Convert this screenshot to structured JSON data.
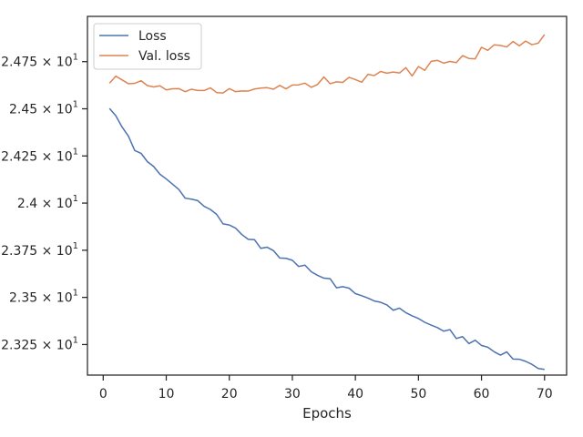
{
  "chart_data": {
    "type": "line",
    "xlabel": "Epochs",
    "ylabel": "",
    "title": "",
    "xlim": [
      -2.5,
      73.5
    ],
    "ylim": [
      23.088,
      24.99
    ],
    "grid": false,
    "legend": "top-left",
    "xticks": [
      0,
      10,
      20,
      30,
      40,
      50,
      60,
      70
    ],
    "xtick_labels": [
      "0",
      "10",
      "20",
      "30",
      "40",
      "50",
      "60",
      "70"
    ],
    "yticks": [
      23.25,
      23.5,
      23.75,
      24.0,
      24.25,
      24.5,
      24.75
    ],
    "ytick_labels": [
      {
        "mantissa": "2.325",
        "exponent": "1"
      },
      {
        "mantissa": "2.35",
        "exponent": "1"
      },
      {
        "mantissa": "2.375",
        "exponent": "1"
      },
      {
        "mantissa": "2.4",
        "exponent": "1"
      },
      {
        "mantissa": "2.425",
        "exponent": "1"
      },
      {
        "mantissa": "2.45",
        "exponent": "1"
      },
      {
        "mantissa": "2.475",
        "exponent": "1"
      }
    ],
    "x": [
      1,
      2,
      3,
      4,
      5,
      6,
      7,
      8,
      9,
      10,
      11,
      12,
      13,
      14,
      15,
      16,
      17,
      18,
      19,
      20,
      21,
      22,
      23,
      24,
      25,
      26,
      27,
      28,
      29,
      30,
      31,
      32,
      33,
      34,
      35,
      36,
      37,
      38,
      39,
      40,
      41,
      42,
      43,
      44,
      45,
      46,
      47,
      48,
      49,
      50,
      51,
      52,
      53,
      54,
      55,
      56,
      57,
      58,
      59,
      60,
      61,
      62,
      63,
      64,
      65,
      66,
      67,
      68,
      69,
      70
    ],
    "series": [
      {
        "name": "Loss",
        "color": "#4c72b0",
        "values": [
          24.502,
          24.463,
          24.403,
          24.355,
          24.279,
          24.264,
          24.22,
          24.194,
          24.153,
          24.128,
          24.1,
          24.072,
          24.026,
          24.021,
          24.013,
          23.983,
          23.966,
          23.94,
          23.89,
          23.884,
          23.867,
          23.833,
          23.808,
          23.806,
          23.76,
          23.766,
          23.748,
          23.709,
          23.707,
          23.697,
          23.664,
          23.671,
          23.636,
          23.617,
          23.602,
          23.599,
          23.551,
          23.557,
          23.549,
          23.52,
          23.509,
          23.496,
          23.481,
          23.474,
          23.46,
          23.432,
          23.443,
          23.419,
          23.402,
          23.388,
          23.368,
          23.353,
          23.34,
          23.321,
          23.329,
          23.282,
          23.292,
          23.255,
          23.273,
          23.245,
          23.236,
          23.212,
          23.194,
          23.211,
          23.173,
          23.172,
          23.161,
          23.145,
          23.123,
          23.118
        ]
      },
      {
        "name": "Val. loss",
        "color": "#dd8452",
        "values": [
          24.636,
          24.673,
          24.653,
          24.633,
          24.635,
          24.649,
          24.623,
          24.616,
          24.622,
          24.6,
          24.606,
          24.607,
          24.591,
          24.604,
          24.597,
          24.597,
          24.611,
          24.586,
          24.584,
          24.607,
          24.591,
          24.595,
          24.594,
          24.605,
          24.61,
          24.612,
          24.604,
          24.624,
          24.606,
          24.626,
          24.627,
          24.636,
          24.614,
          24.629,
          24.669,
          24.633,
          24.643,
          24.64,
          24.667,
          24.655,
          24.641,
          24.683,
          24.676,
          24.698,
          24.689,
          24.695,
          24.69,
          24.718,
          24.674,
          24.724,
          24.704,
          24.751,
          24.757,
          24.742,
          24.751,
          24.745,
          24.782,
          24.767,
          24.765,
          24.826,
          24.81,
          24.839,
          24.836,
          24.828,
          24.857,
          24.834,
          24.859,
          24.84,
          24.848,
          24.894
        ]
      }
    ]
  }
}
